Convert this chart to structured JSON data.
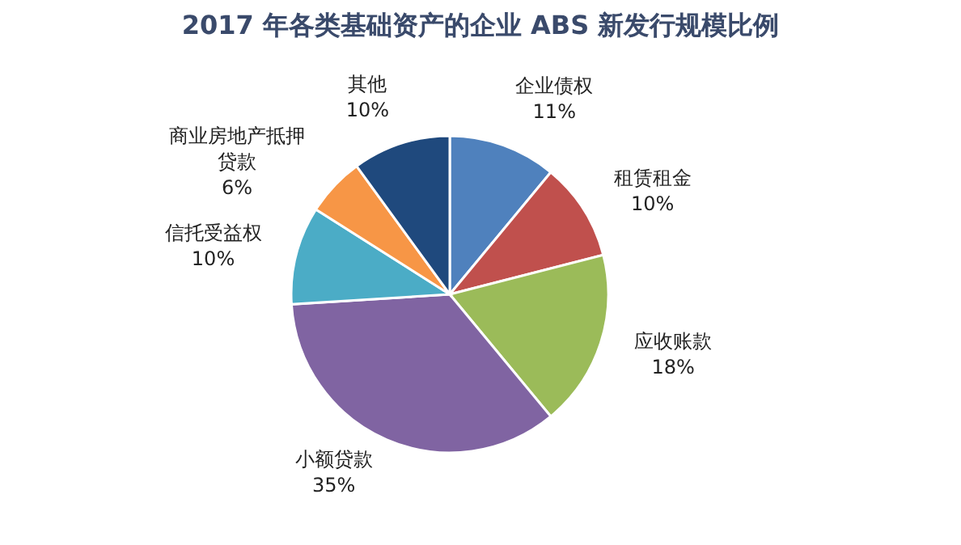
{
  "chart_data": {
    "type": "pie",
    "title": "2017 年各类基础资产的企业 ABS 新发行规模比例",
    "categories": [
      "企业债权",
      "租赁租金",
      "应收账款",
      "小额贷款",
      "信托受益权",
      "商业房地产抵押贷款",
      "其他"
    ],
    "values": [
      11,
      10,
      18,
      35,
      10,
      6,
      10
    ],
    "colors": [
      "#4f81bd",
      "#c0504d",
      "#9bbb59",
      "#8064a2",
      "#4bacc6",
      "#f79646",
      "#1f497d"
    ],
    "value_labels": [
      "11%",
      "10%",
      "18%",
      "35%",
      "10%",
      "6%",
      "10%"
    ]
  }
}
